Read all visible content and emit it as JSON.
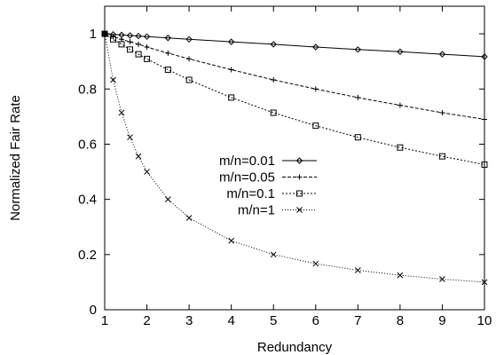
{
  "chart_data": {
    "type": "line",
    "title": "",
    "xlabel": "Redundancy",
    "ylabel": "Normalized Fair Rate",
    "xlim": [
      1,
      10
    ],
    "ylim": [
      0,
      1.1
    ],
    "xticks": [
      "1",
      "2",
      "3",
      "4",
      "5",
      "6",
      "7",
      "8",
      "9",
      "10"
    ],
    "yticks": [
      "0",
      "0.2",
      "0.4",
      "0.6",
      "0.8",
      "1"
    ],
    "grid": false,
    "legend_position": "center",
    "x": [
      1,
      1.2,
      1.4,
      1.6,
      1.8,
      2,
      2.5,
      3,
      4,
      5,
      6,
      7,
      8,
      9,
      10
    ],
    "series": [
      {
        "name": "m/n=0.01",
        "marker": "diamond",
        "dash": "solid",
        "values": [
          1.0,
          0.998,
          0.996,
          0.994,
          0.992,
          0.99,
          0.985,
          0.98,
          0.971,
          0.962,
          0.952,
          0.943,
          0.935,
          0.926,
          0.917
        ]
      },
      {
        "name": "m/n=0.05",
        "marker": "plus",
        "dash": "dashed",
        "values": [
          1.0,
          0.99,
          0.98,
          0.971,
          0.962,
          0.952,
          0.93,
          0.909,
          0.87,
          0.833,
          0.8,
          0.769,
          0.741,
          0.714,
          0.69
        ]
      },
      {
        "name": "m/n=0.1",
        "marker": "square",
        "dash": "dotted",
        "values": [
          1.0,
          0.98,
          0.962,
          0.943,
          0.926,
          0.909,
          0.87,
          0.833,
          0.769,
          0.714,
          0.667,
          0.625,
          0.588,
          0.556,
          0.526
        ]
      },
      {
        "name": "m/n=1",
        "marker": "cross",
        "dash": "fine-dotted",
        "values": [
          1.0,
          0.833,
          0.714,
          0.625,
          0.556,
          0.5,
          0.4,
          0.333,
          0.25,
          0.2,
          0.167,
          0.143,
          0.125,
          0.111,
          0.1
        ]
      }
    ]
  }
}
